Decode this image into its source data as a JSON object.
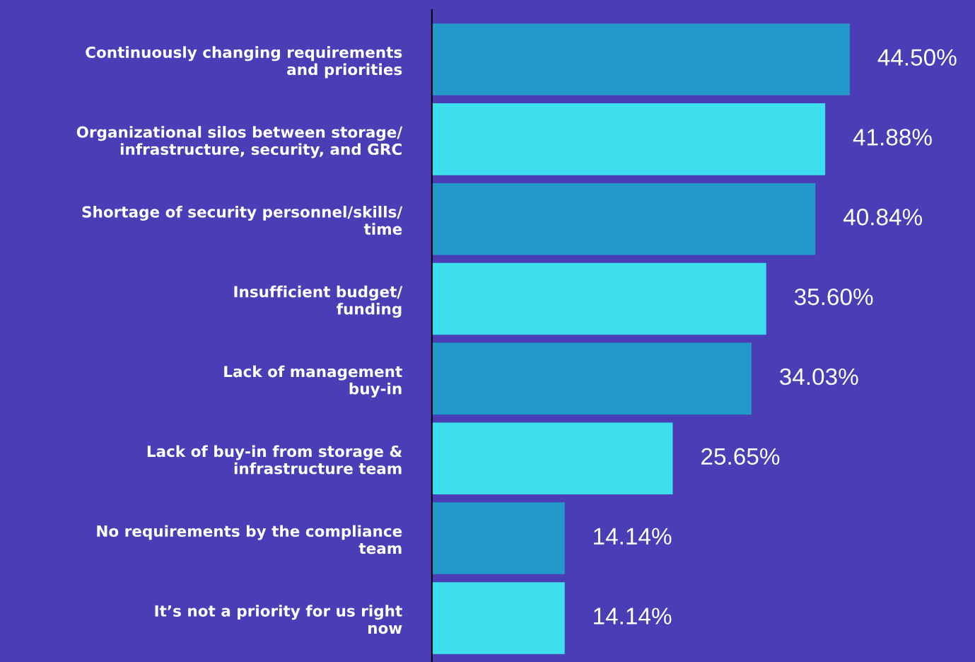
{
  "chart_data": {
    "type": "bar",
    "orientation": "horizontal",
    "categories": [
      "Continuously changing requirements\nand priorities",
      "Organizational silos between storage/\ninfrastructure, security, and GRC",
      "Shortage of security personnel/skills/\ntime",
      "Insufficient budget/\nfunding",
      "Lack of management\nbuy-in",
      "Lack of buy-in from storage &\ninfrastructure team",
      "No requirements by the compliance\nteam",
      "It’s not a priority for us right\nnow"
    ],
    "values": [
      44.5,
      41.88,
      40.84,
      35.6,
      34.03,
      25.65,
      14.14,
      14.14
    ],
    "value_labels": [
      "44.50%",
      "41.88%",
      "40.84%",
      "35.60%",
      "34.03%",
      "25.65%",
      "14.14%",
      "14.14%"
    ],
    "colors": [
      "#2299c9",
      "#3ddfef",
      "#2299c9",
      "#3ddfef",
      "#2299c9",
      "#3ddfef",
      "#2299c9",
      "#3ddfef"
    ],
    "tick_labels": "y",
    "grid": false,
    "legend": false
  }
}
